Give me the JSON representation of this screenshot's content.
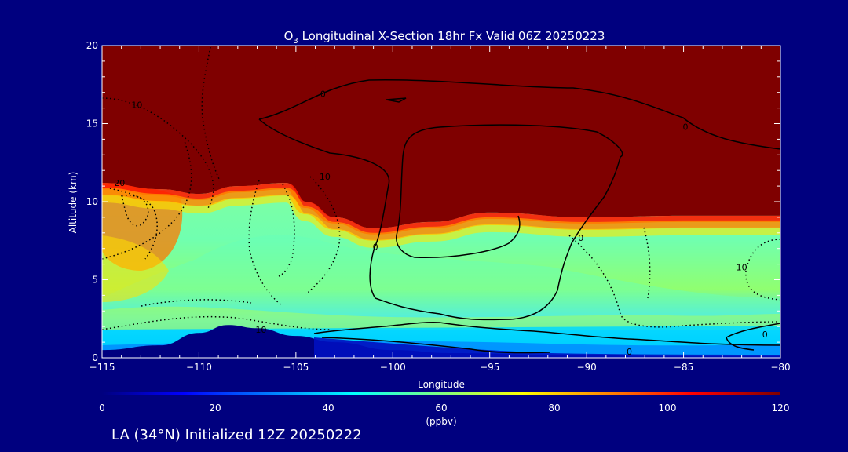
{
  "chart_data": {
    "type": "heatmap",
    "title_main": "O",
    "title_sub": "3",
    "title_rest": " Longitudinal X-Section 18hr  Fx Valid 06Z 20250223",
    "xlabel": "Longitude",
    "ylabel": "Altitude (km)",
    "xlim": [
      -115,
      -80
    ],
    "ylim": [
      0,
      20
    ],
    "x_ticks": [
      -115,
      -110,
      -105,
      -100,
      -95,
      -90,
      -85,
      -80
    ],
    "x_tick_labels": [
      "−115",
      "−110",
      "−105",
      "−100",
      "−95",
      "−90",
      "−85",
      "−80"
    ],
    "y_ticks": [
      0,
      5,
      10,
      15,
      20
    ],
    "y_tick_labels": [
      "0",
      "5",
      "10",
      "15",
      "20"
    ],
    "colorbar": {
      "range": [
        0,
        120
      ],
      "ticks": [
        0,
        20,
        40,
        60,
        80,
        100,
        120
      ],
      "tick_labels": [
        "0",
        "20",
        "40",
        "60",
        "80",
        "100",
        "120"
      ],
      "unit": "(ppbv)",
      "colors": [
        "#00007f",
        "#0000ff",
        "#0080ff",
        "#00ffff",
        "#80ff80",
        "#ffff00",
        "#ff8000",
        "#ff0000",
        "#7f0000"
      ]
    },
    "field_description": {
      "tropopause_altitude_km": [
        [
          -115,
          11.2
        ],
        [
          -112,
          10.8
        ],
        [
          -110,
          10.5
        ],
        [
          -108,
          11.0
        ],
        [
          -105.5,
          11.2
        ],
        [
          -104.5,
          10.0
        ],
        [
          -103,
          9.0
        ],
        [
          -101,
          8.3
        ],
        [
          -98,
          8.7
        ],
        [
          -95,
          9.3
        ],
        [
          -90,
          9.0
        ],
        [
          -85,
          9.1
        ],
        [
          -80,
          9.1
        ]
      ],
      "terrain_km": [
        [
          -115,
          0.5
        ],
        [
          -112,
          0.8
        ],
        [
          -110,
          1.6
        ],
        [
          -108.5,
          2.1
        ],
        [
          -107,
          1.9
        ],
        [
          -105,
          1.4
        ],
        [
          -103,
          1.0
        ],
        [
          -100,
          0.5
        ],
        [
          -97,
          0.3
        ],
        [
          -92,
          0.2
        ],
        [
          -85,
          0.1
        ],
        [
          -80,
          0.1
        ]
      ]
    },
    "contour_labels": [
      {
        "text": "10",
        "lon": -113.2,
        "alt": 16.2
      },
      {
        "text": "20",
        "lon": -114.1,
        "alt": 11.2
      },
      {
        "text": "10",
        "lon": -103.5,
        "alt": 11.6
      },
      {
        "text": "0",
        "lon": -103.6,
        "alt": 16.9
      },
      {
        "text": "0",
        "lon": -84.9,
        "alt": 14.8
      },
      {
        "text": "0",
        "lon": -100.9,
        "alt": 7.1
      },
      {
        "text": "0",
        "lon": -90.3,
        "alt": 7.7
      },
      {
        "text": "10",
        "lon": -82.0,
        "alt": 5.8
      },
      {
        "text": "10",
        "lon": -106.8,
        "alt": 1.8
      },
      {
        "text": "0",
        "lon": -87.8,
        "alt": 0.4
      },
      {
        "text": "0",
        "lon": -80.8,
        "alt": 1.5
      }
    ]
  },
  "footer": "LA (34°N) Initialized 12Z 20250222"
}
